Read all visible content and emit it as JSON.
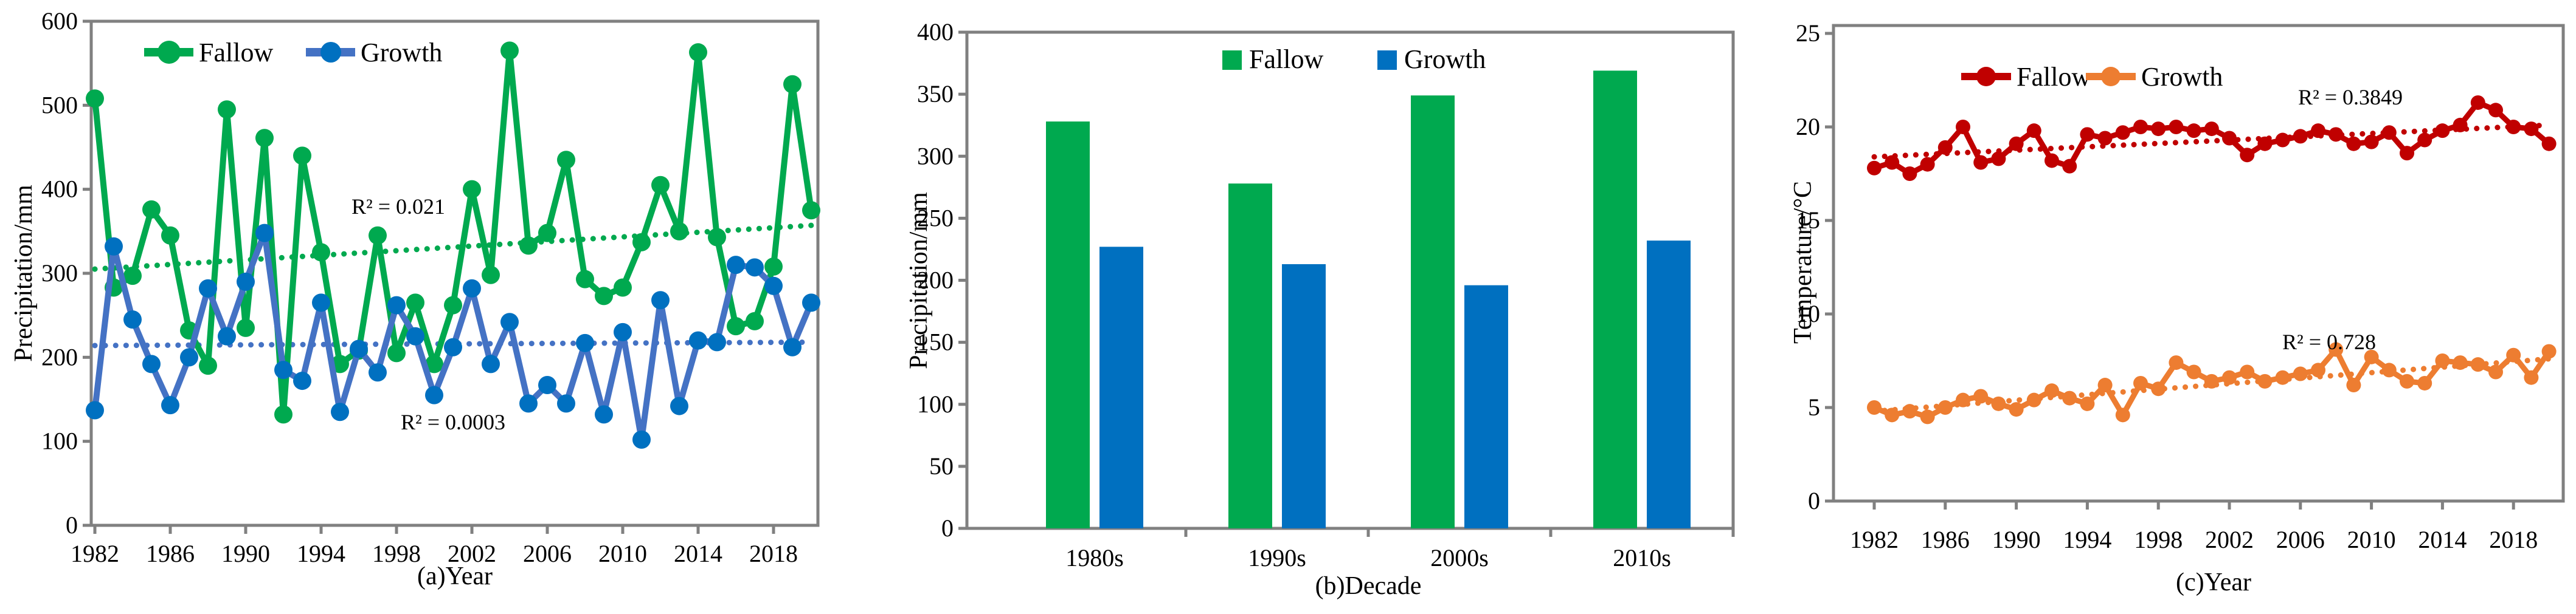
{
  "figure": {
    "background": "#ffffff",
    "axis_color": "#808080",
    "text_color": "#000000"
  },
  "chart_data": [
    {
      "id": "a",
      "type": "line",
      "xlabel": "(a)Year",
      "ylabel": "Precipitation/mm",
      "ylim": [
        0,
        600
      ],
      "yticks": [
        0,
        100,
        200,
        300,
        400,
        500,
        600
      ],
      "xticks": [
        "1982",
        "1986",
        "1990",
        "1994",
        "1998",
        "2002",
        "2006",
        "2010",
        "2014",
        "2018"
      ],
      "x": [
        1982,
        1983,
        1984,
        1985,
        1986,
        1987,
        1988,
        1989,
        1990,
        1991,
        1992,
        1993,
        1994,
        1995,
        1996,
        1997,
        1998,
        1999,
        2000,
        2001,
        2002,
        2003,
        2004,
        2005,
        2006,
        2007,
        2008,
        2009,
        2010,
        2011,
        2012,
        2013,
        2014,
        2015,
        2016,
        2017,
        2018,
        2019,
        2020
      ],
      "legend_position": "top-inside",
      "grid": false,
      "series": [
        {
          "name": "Fallow",
          "color": "#00A94F",
          "marker_color": "#00A94F",
          "r2_label": "R² = 0.021",
          "trend": [
            305,
            357
          ],
          "values": [
            508,
            283,
            297,
            376,
            345,
            232,
            190,
            495,
            235,
            461,
            132,
            440,
            325,
            192,
            208,
            345,
            205,
            265,
            192,
            262,
            400,
            298,
            565,
            333,
            348,
            435,
            293,
            273,
            283,
            337,
            405,
            350,
            563,
            343,
            237,
            243,
            308,
            525,
            375
          ]
        },
        {
          "name": "Growth",
          "color": "#4472C4",
          "marker_color": "#0070C0",
          "r2_label": "R² = 0.0003",
          "trend": [
            214,
            218
          ],
          "values": [
            137,
            332,
            245,
            192,
            143,
            200,
            282,
            225,
            290,
            348,
            185,
            172,
            265,
            135,
            210,
            182,
            262,
            225,
            155,
            212,
            282,
            192,
            242,
            145,
            167,
            145,
            217,
            132,
            230,
            102,
            268,
            142,
            220,
            218,
            310,
            307,
            285,
            212,
            265
          ]
        }
      ]
    },
    {
      "id": "b",
      "type": "bar",
      "xlabel": "(b)Decade",
      "ylabel": "Precipitation/mm",
      "ylim": [
        0,
        400
      ],
      "yticks": [
        0,
        50,
        100,
        150,
        200,
        250,
        300,
        350,
        400
      ],
      "categories": [
        "1980s",
        "1990s",
        "2000s",
        "2010s"
      ],
      "legend_position": "top-inside",
      "grid": false,
      "series": [
        {
          "name": "Fallow",
          "color": "#00A94F",
          "values": [
            328,
            278,
            349,
            369
          ]
        },
        {
          "name": "Growth",
          "color": "#0070C0",
          "values": [
            227,
            213,
            196,
            232
          ]
        }
      ]
    },
    {
      "id": "c",
      "type": "line",
      "xlabel": "(c)Year",
      "ylabel": "Temperature/°C",
      "ylim": [
        0,
        25
      ],
      "yticks": [
        0,
        5,
        10,
        15,
        20,
        25
      ],
      "xticks": [
        "1982",
        "1986",
        "1990",
        "1994",
        "1998",
        "2002",
        "2006",
        "2010",
        "2014",
        "2018"
      ],
      "x": [
        1982,
        1983,
        1984,
        1985,
        1986,
        1987,
        1988,
        1989,
        1990,
        1991,
        1992,
        1993,
        1994,
        1995,
        1996,
        1997,
        1998,
        1999,
        2000,
        2001,
        2002,
        2003,
        2004,
        2005,
        2006,
        2007,
        2008,
        2009,
        2010,
        2011,
        2012,
        2013,
        2014,
        2015,
        2016,
        2017,
        2018,
        2019,
        2020
      ],
      "legend_position": "top-inside",
      "grid": false,
      "series": [
        {
          "name": "Fallow",
          "color": "#C00000",
          "marker_color": "#C00000",
          "r2_label": "R² = 0.3849",
          "trend": [
            18.4,
            20.1
          ],
          "values": [
            17.8,
            18.1,
            17.5,
            18.0,
            18.9,
            20.0,
            18.1,
            18.3,
            19.1,
            19.8,
            18.2,
            17.9,
            19.6,
            19.4,
            19.7,
            20.0,
            19.9,
            20.0,
            19.8,
            19.9,
            19.4,
            18.5,
            19.1,
            19.3,
            19.5,
            19.8,
            19.6,
            19.1,
            19.2,
            19.7,
            18.6,
            19.3,
            19.8,
            20.1,
            21.3,
            20.9,
            20.0,
            19.9,
            19.1
          ]
        },
        {
          "name": "Growth",
          "color": "#ED7D31",
          "marker_color": "#ED7D31",
          "r2_label": "R² = 0.728",
          "trend": [
            4.8,
            7.6
          ],
          "values": [
            5.0,
            4.6,
            4.8,
            4.5,
            5.0,
            5.4,
            5.6,
            5.2,
            4.9,
            5.4,
            5.9,
            5.5,
            5.2,
            6.2,
            4.6,
            6.3,
            6.0,
            7.4,
            6.9,
            6.4,
            6.6,
            6.9,
            6.4,
            6.6,
            6.8,
            7.0,
            8.1,
            6.2,
            7.7,
            7.0,
            6.4,
            6.3,
            7.5,
            7.4,
            7.3,
            6.9,
            7.8,
            6.6,
            8.0
          ]
        }
      ]
    }
  ]
}
